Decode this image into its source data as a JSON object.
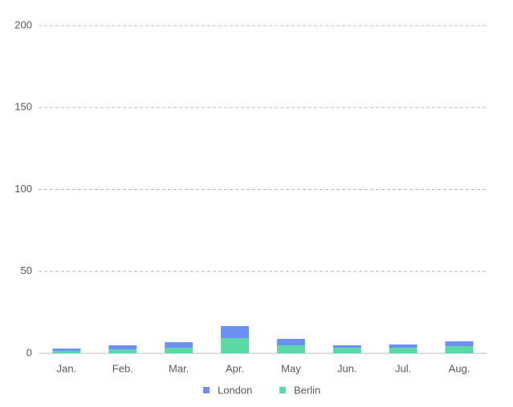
{
  "chart_data": {
    "type": "stacked_bar",
    "categories": [
      "Jan.",
      "Feb.",
      "Mar.",
      "Apr.",
      "May",
      "Jun.",
      "Jul.",
      "Aug."
    ],
    "series": [
      {
        "name": "London",
        "color": "#6b8ff2",
        "values": [
          1.4,
          2.5,
          3.4,
          7.3,
          3.9,
          1.5,
          2.0,
          2.9
        ]
      },
      {
        "name": "Berlin",
        "color": "#5ad8a6",
        "values": [
          1.5,
          2.4,
          3.4,
          9.3,
          4.9,
          3.4,
          3.4,
          4.4
        ]
      }
    ],
    "ylim": [
      0,
      200
    ],
    "yticks": [
      0,
      50,
      100,
      150,
      200
    ],
    "grid": true,
    "legend": "bottom"
  }
}
